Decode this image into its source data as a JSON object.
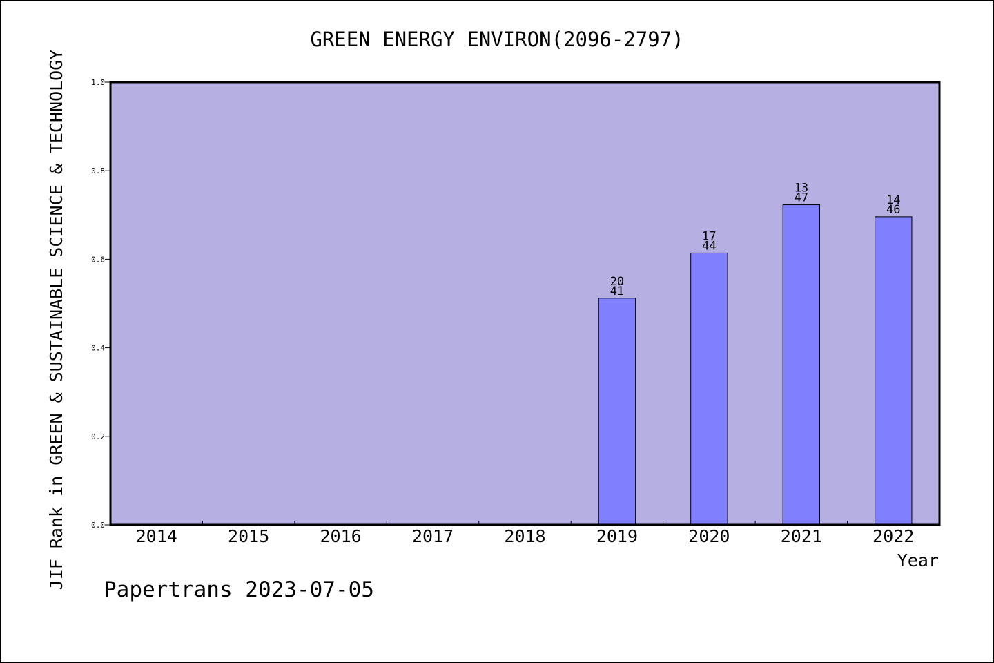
{
  "chart_data": {
    "type": "bar",
    "title": "GREEN ENERGY ENVIRON(2096-2797)",
    "xlabel": "Year",
    "ylabel": "JIF Rank in GREEN & SUSTAINABLE SCIENCE & TECHNOLOGY",
    "ylim": [
      0,
      1.0
    ],
    "yticks": [
      "0.0",
      "0.2",
      "0.4",
      "0.6",
      "0.8",
      "1.0"
    ],
    "categories": [
      "2014",
      "2015",
      "2016",
      "2017",
      "2018",
      "2019",
      "2020",
      "2021",
      "2022"
    ],
    "values": [
      null,
      null,
      null,
      null,
      null,
      0.512,
      0.614,
      0.723,
      0.696
    ],
    "bar_labels": [
      null,
      null,
      null,
      null,
      null,
      {
        "rank": "20",
        "total": "41"
      },
      {
        "rank": "17",
        "total": "44"
      },
      {
        "rank": "13",
        "total": "47"
      },
      {
        "rank": "14",
        "total": "46"
      }
    ],
    "grid": false,
    "plot_background": "#b6b0e2",
    "bar_color": "#8080ff"
  },
  "footer": {
    "watermark": "Papertrans 2023-07-05"
  }
}
